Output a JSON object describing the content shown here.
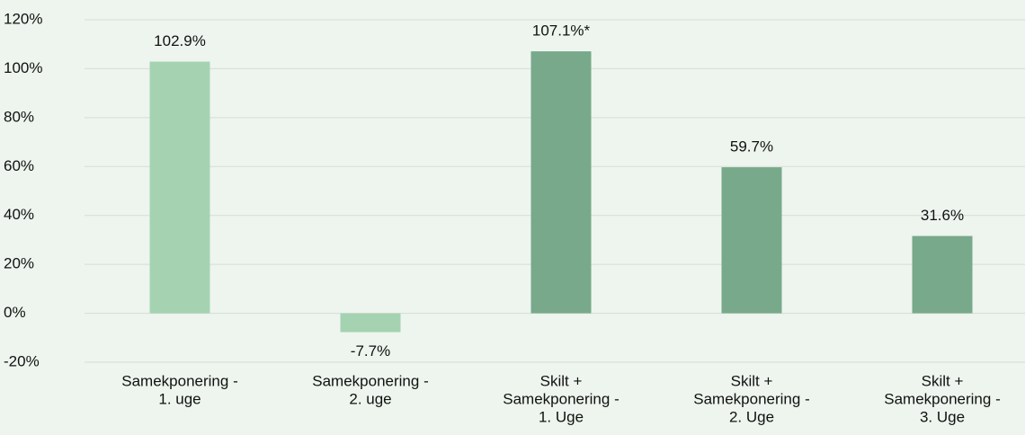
{
  "chart_data": {
    "type": "bar",
    "categories": [
      [
        "Samekponering -",
        "1. uge"
      ],
      [
        "Samekponering -",
        "2. uge"
      ],
      [
        "Skilt +",
        "Samekponering -",
        "1. Uge"
      ],
      [
        "Skilt +",
        "Samekponering -",
        "2. Uge"
      ],
      [
        "Skilt +",
        "Samekponering -",
        "3. Uge"
      ]
    ],
    "values": [
      102.9,
      -7.7,
      107.1,
      59.7,
      31.6
    ],
    "value_labels": [
      "102.9%",
      "-7.7%",
      "107.1%*",
      "59.7%",
      "31.6%"
    ],
    "colors": [
      "#a5d3b1",
      "#a5d3b1",
      "#78a98a",
      "#78a98a",
      "#78a98a"
    ],
    "ylim": [
      -20,
      120
    ],
    "yticks": [
      {
        "value": -20,
        "label": "-20%"
      },
      {
        "value": 0,
        "label": "0%"
      },
      {
        "value": 20,
        "label": "20%"
      },
      {
        "value": 40,
        "label": "40%"
      },
      {
        "value": 60,
        "label": "60%"
      },
      {
        "value": 80,
        "label": "80%"
      },
      {
        "value": 100,
        "label": "100%"
      },
      {
        "value": 120,
        "label": "120%"
      }
    ],
    "grid": true
  }
}
